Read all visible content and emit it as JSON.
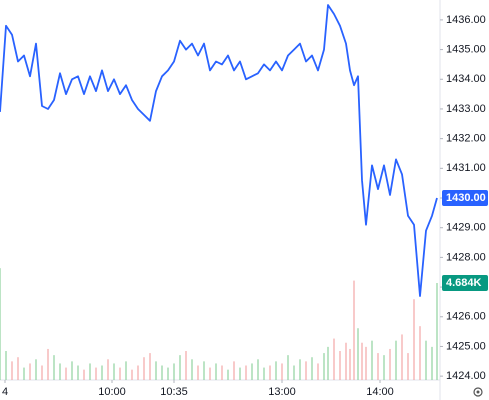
{
  "chart_data": {
    "type": "line",
    "x": [
      0,
      6,
      12,
      18,
      24,
      30,
      36,
      42,
      48,
      54,
      60,
      66,
      72,
      78,
      84,
      90,
      96,
      102,
      108,
      114,
      120,
      126,
      132,
      138,
      144,
      150,
      156,
      162,
      168,
      174,
      180,
      186,
      192,
      198,
      204,
      210,
      216,
      222,
      228,
      234,
      240,
      246,
      252,
      258,
      264,
      270,
      276,
      282,
      288,
      294,
      300,
      306,
      312,
      318,
      324,
      328,
      334,
      340,
      346,
      350,
      354,
      358,
      362,
      366,
      372,
      378,
      384,
      390,
      396,
      402,
      408,
      414,
      420,
      426,
      432,
      437
    ],
    "series": [
      {
        "name": "Price",
        "color": "#2962ff",
        "values": [
          1432.9,
          1435.8,
          1435.5,
          1434.6,
          1434.8,
          1434.1,
          1435.2,
          1433.1,
          1433.0,
          1433.3,
          1434.2,
          1433.5,
          1434.0,
          1434.1,
          1433.5,
          1434.1,
          1433.6,
          1434.3,
          1433.6,
          1434.0,
          1433.5,
          1433.8,
          1433.3,
          1433.0,
          1432.8,
          1432.6,
          1433.6,
          1434.1,
          1434.3,
          1434.6,
          1435.3,
          1435.0,
          1435.2,
          1434.8,
          1435.2,
          1434.3,
          1434.6,
          1434.5,
          1434.8,
          1434.3,
          1434.6,
          1434.0,
          1434.1,
          1434.2,
          1434.5,
          1434.3,
          1434.6,
          1434.3,
          1434.8,
          1435.0,
          1435.2,
          1434.6,
          1434.8,
          1434.3,
          1435.0,
          1436.5,
          1436.2,
          1435.8,
          1435.2,
          1434.3,
          1433.8,
          1434.1,
          1430.6,
          1429.1,
          1431.1,
          1430.3,
          1431.1,
          1430.1,
          1431.3,
          1430.8,
          1429.4,
          1429.1,
          1426.7,
          1428.9,
          1429.4,
          1430.0
        ]
      },
      {
        "name": "Volume",
        "type": "bar",
        "axis": "y2",
        "up_color": "#8fd19e",
        "down_color": "#f4a6a6",
        "values": [
          5400,
          1400,
          900,
          1100,
          600,
          800,
          1000,
          700,
          1500,
          1200,
          800,
          600,
          900,
          700,
          500,
          800,
          600,
          700,
          1000,
          800,
          600,
          900,
          500,
          700,
          1100,
          1300,
          900,
          700,
          600,
          800,
          1200,
          1400,
          1000,
          700,
          900,
          600,
          800,
          700,
          500,
          900,
          600,
          700,
          800,
          1000,
          600,
          700,
          900,
          800,
          1200,
          700,
          1000,
          900,
          1100,
          800,
          1300,
          1600,
          2000,
          1400,
          1800,
          1500,
          4800,
          2500,
          1800,
          1600,
          1900,
          1300,
          1200,
          1500,
          1900,
          2200,
          1300,
          3900,
          2600,
          1900,
          1600,
          4684
        ]
      }
    ],
    "xlim": [
      0,
      440
    ],
    "xticks": [
      {
        "value": 5,
        "label": "4"
      },
      {
        "value": 112,
        "label": "10:00"
      },
      {
        "value": 174,
        "label": "10:35"
      },
      {
        "value": 282,
        "label": "13:00"
      },
      {
        "value": 380,
        "label": "14:00"
      }
    ],
    "ylim": [
      1423.87,
      1436.67
    ],
    "yticks": [
      {
        "value": 1424,
        "label": "1424.00"
      },
      {
        "value": 1425,
        "label": "1425.00"
      },
      {
        "value": 1426,
        "label": "1426.00"
      },
      {
        "value": 1427,
        "label": "1427.00"
      },
      {
        "value": 1428,
        "label": "1428.00"
      },
      {
        "value": 1429,
        "label": "1429.00"
      },
      {
        "value": 1430,
        "label": "1430.00"
      },
      {
        "value": 1431,
        "label": "1431.00"
      },
      {
        "value": 1432,
        "label": "1432.00"
      },
      {
        "value": 1433,
        "label": "1433.00"
      },
      {
        "value": 1434,
        "label": "1434.00"
      },
      {
        "value": 1435,
        "label": "1435.00"
      },
      {
        "value": 1436,
        "label": "1436.00"
      }
    ],
    "y2lim": [
      0,
      18350
    ],
    "price_tag": {
      "value": 1430,
      "label": "1430.00",
      "color": "#2962ff"
    },
    "volume_tag": {
      "value": 4684,
      "label": "4.684K",
      "color": "#089981"
    }
  }
}
